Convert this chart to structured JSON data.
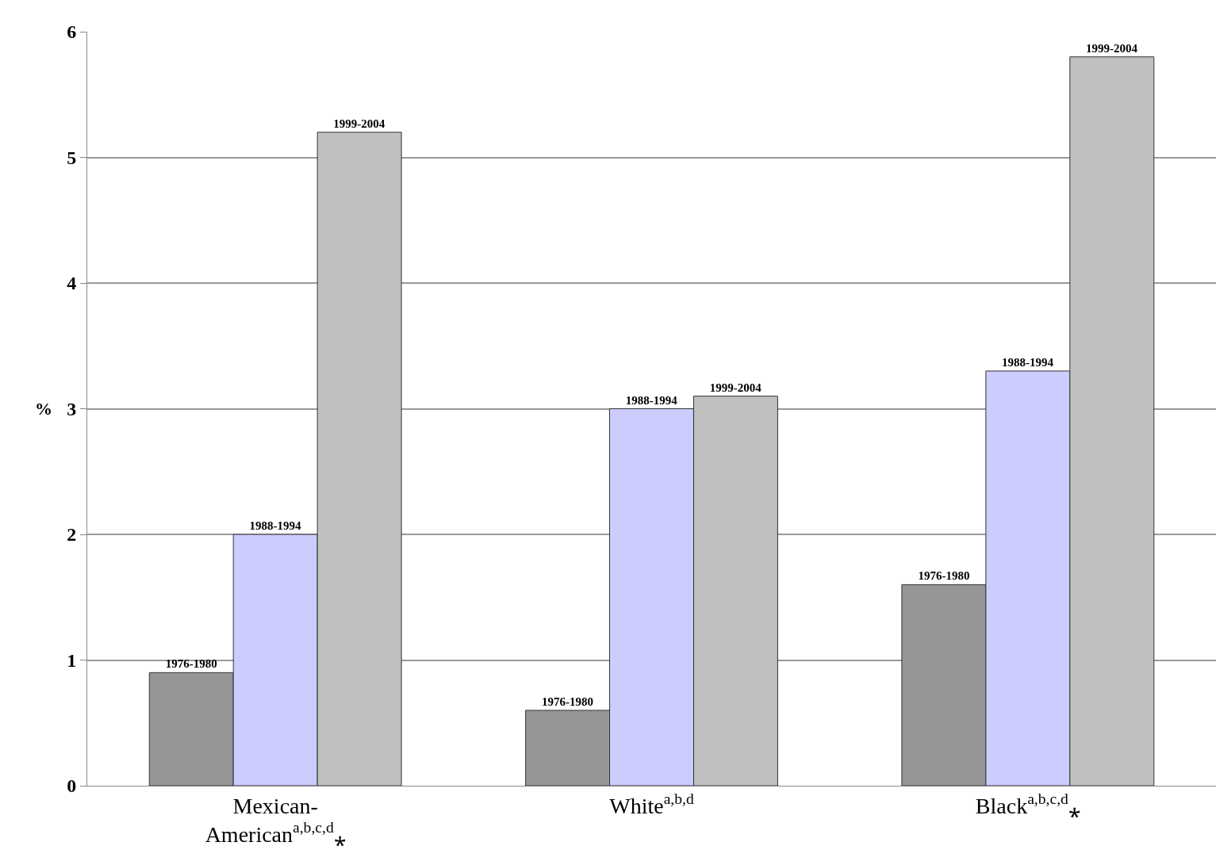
{
  "chart_data": {
    "type": "bar",
    "ylabel": "%",
    "categories": [
      "Mexican-\nAmerican$^{a,b,c,d}$⁎",
      "White$^{a,b,d}$",
      "Black$^{a,b,c,d}$⁎"
    ],
    "series": [
      {
        "name": "1976-1980",
        "color": "#969696",
        "values": [
          0.9,
          0.6,
          1.6
        ]
      },
      {
        "name": "1988-1994",
        "color": "#ccccff",
        "values": [
          2.0,
          3.0,
          3.3
        ]
      },
      {
        "name": "1999-2004",
        "color": "#c0c0c0",
        "values": [
          5.2,
          3.1,
          5.8
        ]
      }
    ],
    "ylim": [
      0,
      6
    ],
    "yticks": [
      0,
      1,
      2,
      3,
      4,
      5,
      6
    ],
    "grid": "y",
    "legend": false
  }
}
